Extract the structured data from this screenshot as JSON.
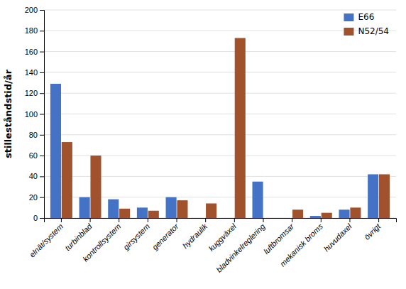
{
  "chart_data": {
    "type": "bar",
    "ylabel": "stilleståndstid/år",
    "categories": [
      "elnät/system",
      "turbinblad",
      "kontrollsystem",
      "girsystem",
      "generator",
      "hydraulik",
      "kuggväxel",
      "bladvinkelreglering",
      "luftbromsar",
      "mekanisk broms",
      "huvudaxel",
      "övrigt"
    ],
    "series": [
      {
        "name": "E66",
        "color": "#4472C4",
        "values": [
          129,
          20,
          18,
          10,
          20,
          0,
          0,
          35,
          0,
          2,
          8,
          42
        ]
      },
      {
        "name": "N52/54",
        "color": "#A0522D",
        "values": [
          73,
          60,
          9,
          7,
          17,
          14,
          173,
          0,
          8,
          5,
          10,
          42
        ]
      }
    ],
    "ylim": [
      0,
      200
    ],
    "yticks": [
      0,
      20,
      40,
      60,
      80,
      100,
      120,
      140,
      160,
      180,
      200
    ],
    "grid": true,
    "legend": "upper right"
  }
}
